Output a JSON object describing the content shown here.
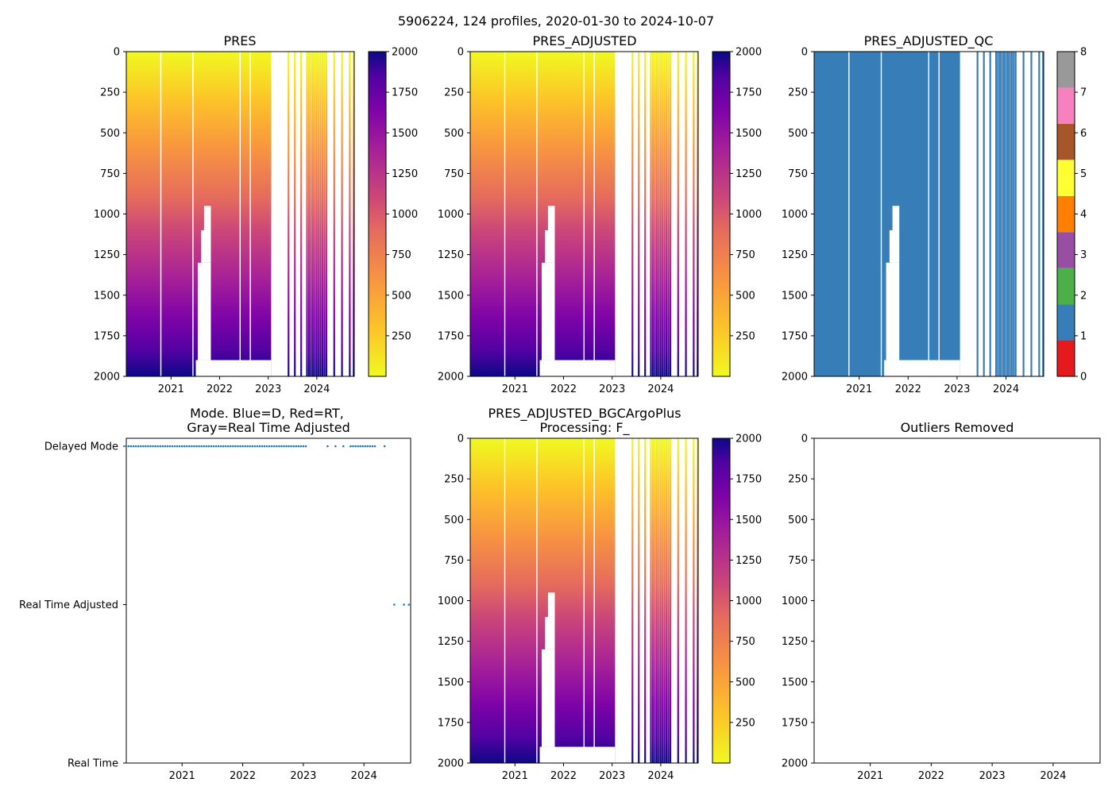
{
  "suptitle": "5906224, 124 profiles, 2020-01-30 to 2024-10-07",
  "colors": {
    "plasma_top": "#0d0887",
    "qc_blue": "#377eb8",
    "mode_dot": "#1f77b4",
    "gap": "#ffffff"
  },
  "chart_data": [
    {
      "id": "pres",
      "type": "heatmap",
      "title": "PRES",
      "xlabel": "",
      "ylabel": "",
      "xlim": [
        2020.08,
        2024.77
      ],
      "ylim": [
        2000,
        0
      ],
      "x_ticks": [
        "2021",
        "2022",
        "2023",
        "2024"
      ],
      "y_ticks": [
        "0",
        "250",
        "500",
        "750",
        "1000",
        "1250",
        "1500",
        "1750",
        "2000"
      ],
      "colormap": "plasma_r",
      "colorbar": {
        "range": [
          0,
          2000
        ],
        "ticks": [
          "250",
          "500",
          "750",
          "1000",
          "1250",
          "1500",
          "1750",
          "2000"
        ]
      }
    },
    {
      "id": "pres_adj",
      "type": "heatmap",
      "title": "PRES_ADJUSTED",
      "xlabel": "",
      "ylabel": "",
      "xlim": [
        2020.08,
        2024.77
      ],
      "ylim": [
        2000,
        0
      ],
      "x_ticks": [
        "2021",
        "2022",
        "2023",
        "2024"
      ],
      "y_ticks": [
        "0",
        "250",
        "500",
        "750",
        "1000",
        "1250",
        "1500",
        "1750",
        "2000"
      ],
      "colormap": "plasma_r",
      "colorbar": {
        "range": [
          0,
          2000
        ],
        "ticks": [
          "250",
          "500",
          "750",
          "1000",
          "1250",
          "1500",
          "1750",
          "2000"
        ]
      }
    },
    {
      "id": "pres_qc",
      "type": "heatmap",
      "title": "PRES_ADJUSTED_QC",
      "xlabel": "",
      "ylabel": "",
      "xlim": [
        2020.08,
        2024.77
      ],
      "ylim": [
        2000,
        0
      ],
      "x_ticks": [
        "2021",
        "2022",
        "2023",
        "2024"
      ],
      "y_ticks": [
        "0",
        "250",
        "500",
        "750",
        "1000",
        "1250",
        "1500",
        "1750",
        "2000"
      ],
      "qc_value_shown": 1,
      "colorbar": {
        "range": [
          0,
          8
        ],
        "ticks": [
          "0",
          "1",
          "2",
          "3",
          "4",
          "5",
          "6",
          "7",
          "8"
        ],
        "classes": [
          "#e41a1c",
          "#377eb8",
          "#4daf4a",
          "#984ea3",
          "#ff7f00",
          "#ffff33",
          "#a65628",
          "#f781bf",
          "#999999"
        ]
      }
    },
    {
      "id": "mode",
      "type": "scatter",
      "title_lines": [
        "Mode. Blue=D, Red=RT,",
        "Gray=Real Time Adjusted"
      ],
      "xlim": [
        2020.08,
        2024.77
      ],
      "x_ticks": [
        "2021",
        "2022",
        "2023",
        "2024"
      ],
      "y_categories": [
        "Delayed Mode",
        "Real Time Adjusted",
        "Real Time"
      ],
      "series": [
        {
          "name": "Delayed Mode",
          "x": [
            2020.08,
            2020.12,
            2020.16,
            2020.2,
            2020.24,
            2020.28,
            2020.32,
            2020.36,
            2020.4,
            2020.44,
            2020.48,
            2020.52,
            2020.56,
            2020.6,
            2020.64,
            2020.68,
            2020.72,
            2020.76,
            2020.8,
            2020.84,
            2020.88,
            2020.92,
            2020.96,
            2021.0,
            2021.04,
            2021.08,
            2021.12,
            2021.16,
            2021.2,
            2021.24,
            2021.28,
            2021.32,
            2021.36,
            2021.4,
            2021.44,
            2021.48,
            2021.52,
            2021.56,
            2021.6,
            2021.64,
            2021.68,
            2021.72,
            2021.76,
            2021.8,
            2021.84,
            2021.88,
            2021.92,
            2021.96,
            2022.0,
            2022.04,
            2022.08,
            2022.12,
            2022.16,
            2022.2,
            2022.24,
            2022.28,
            2022.32,
            2022.36,
            2022.4,
            2022.44,
            2022.48,
            2022.52,
            2022.56,
            2022.6,
            2022.64,
            2022.68,
            2022.72,
            2022.76,
            2022.8,
            2022.84,
            2022.88,
            2022.92,
            2022.96,
            2023.0,
            2023.04,
            2023.4,
            2023.53,
            2023.66,
            2023.78,
            2023.82,
            2023.86,
            2023.9,
            2023.94,
            2023.98,
            2024.02,
            2024.06,
            2024.1,
            2024.14,
            2024.18,
            2024.34
          ]
        },
        {
          "name": "Real Time Adjusted",
          "x": [
            2024.5,
            2024.66,
            2024.74
          ]
        }
      ]
    },
    {
      "id": "pres_bgc",
      "type": "heatmap",
      "title_lines": [
        "PRES_ADJUSTED_BGCArgoPlus",
        "Processing: F_"
      ],
      "xlim": [
        2020.08,
        2024.77
      ],
      "ylim": [
        2000,
        0
      ],
      "x_ticks": [
        "2021",
        "2022",
        "2023",
        "2024"
      ],
      "y_ticks": [
        "0",
        "250",
        "500",
        "750",
        "1000",
        "1250",
        "1500",
        "1750",
        "2000"
      ],
      "colormap": "plasma_r",
      "colorbar": {
        "range": [
          0,
          2000
        ],
        "ticks": [
          "250",
          "500",
          "750",
          "1000",
          "1250",
          "1500",
          "1750",
          "2000"
        ]
      }
    },
    {
      "id": "outliers",
      "type": "scatter",
      "title": "Outliers Removed",
      "xlim": [
        2020.08,
        2024.77
      ],
      "ylim": [
        2000,
        0
      ],
      "x_ticks": [
        "2021",
        "2022",
        "2023",
        "2024"
      ],
      "y_ticks": [
        "0",
        "250",
        "500",
        "750",
        "1000",
        "1250",
        "1500",
        "1750",
        "2000"
      ],
      "series": []
    }
  ]
}
